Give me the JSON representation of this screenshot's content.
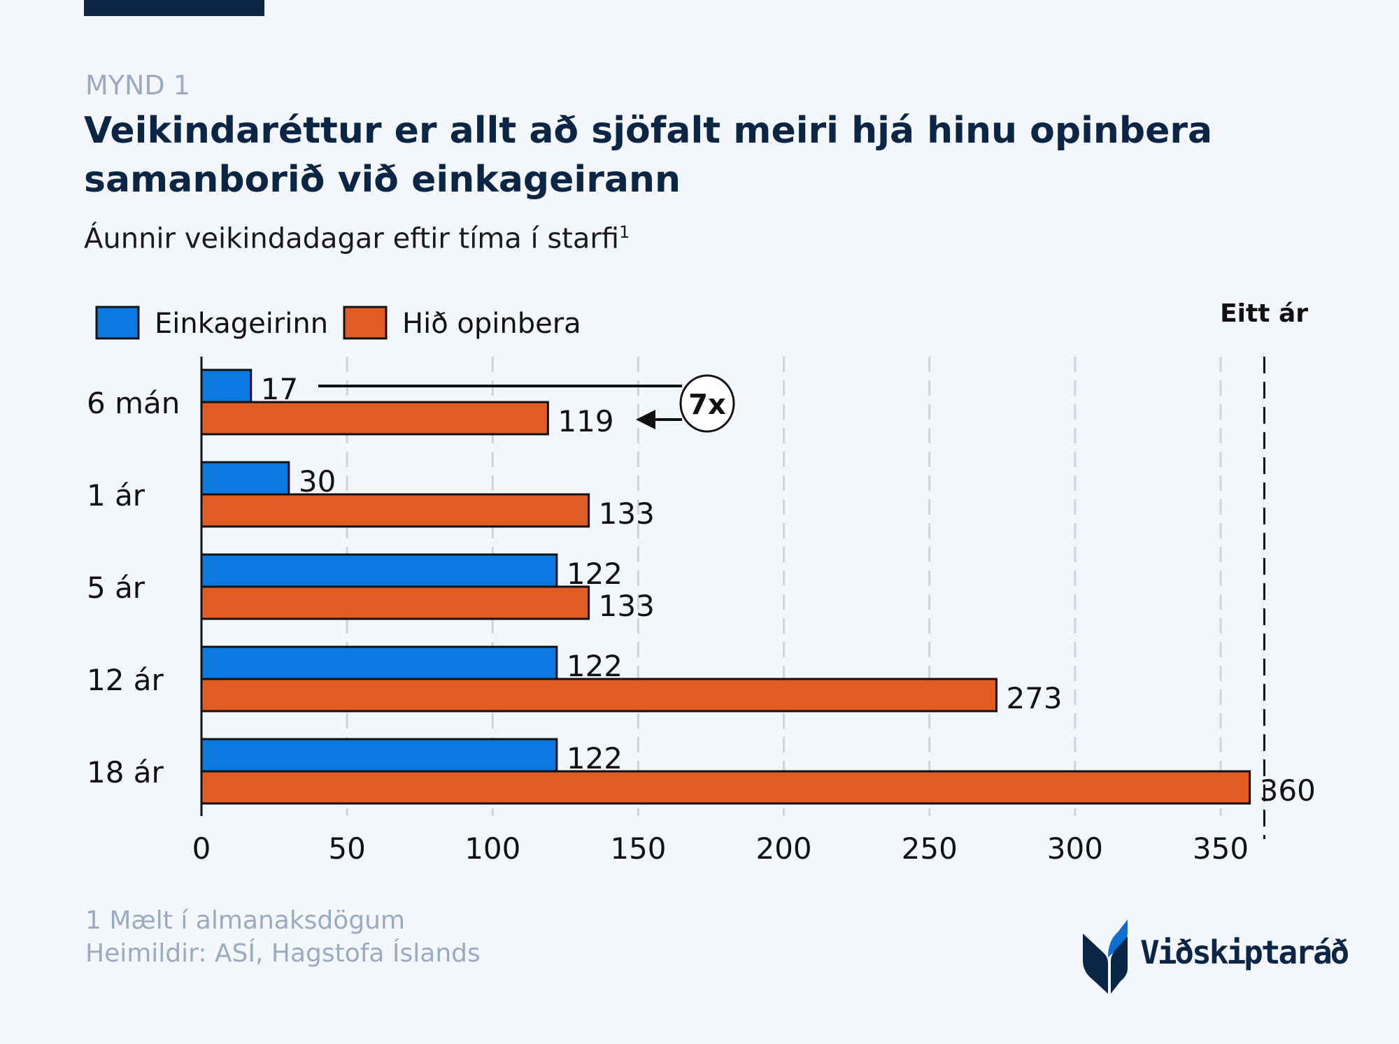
{
  "header": {
    "kicker": "MYND 1",
    "title": "Veikindaréttur er allt að sjöfalt meiri hjá hinu opinbera samanborið við einkageirann",
    "subtitle": "Áunnir veikindadagar eftir tíma í starfi",
    "subtitle_sup": "1"
  },
  "chart_data": {
    "type": "bar",
    "orientation": "horizontal",
    "categories": [
      "6 mán",
      "1 ár",
      "5 ár",
      "12 ár",
      "18 ár"
    ],
    "series": [
      {
        "name": "Einkageirinn",
        "color": "#0a7ae0",
        "values": [
          17,
          30,
          122,
          122,
          122
        ]
      },
      {
        "name": "Hið opinbera",
        "color": "#e05c22",
        "values": [
          119,
          133,
          133,
          273,
          360
        ]
      }
    ],
    "xlim": [
      0,
      365
    ],
    "xticks": [
      0,
      50,
      100,
      150,
      200,
      250,
      300,
      350
    ],
    "grid": true,
    "legend": "top-left",
    "reference_line": {
      "value": 365,
      "label": "Eitt ár"
    },
    "annotation": {
      "label": "7x",
      "from_category": "6 mán"
    }
  },
  "footer": {
    "note": "1 Mælt í almanaksdögum",
    "source": "Heimildir: ASÍ, Hagstofa Íslands",
    "logo_text": "Viðskiptaráð"
  }
}
